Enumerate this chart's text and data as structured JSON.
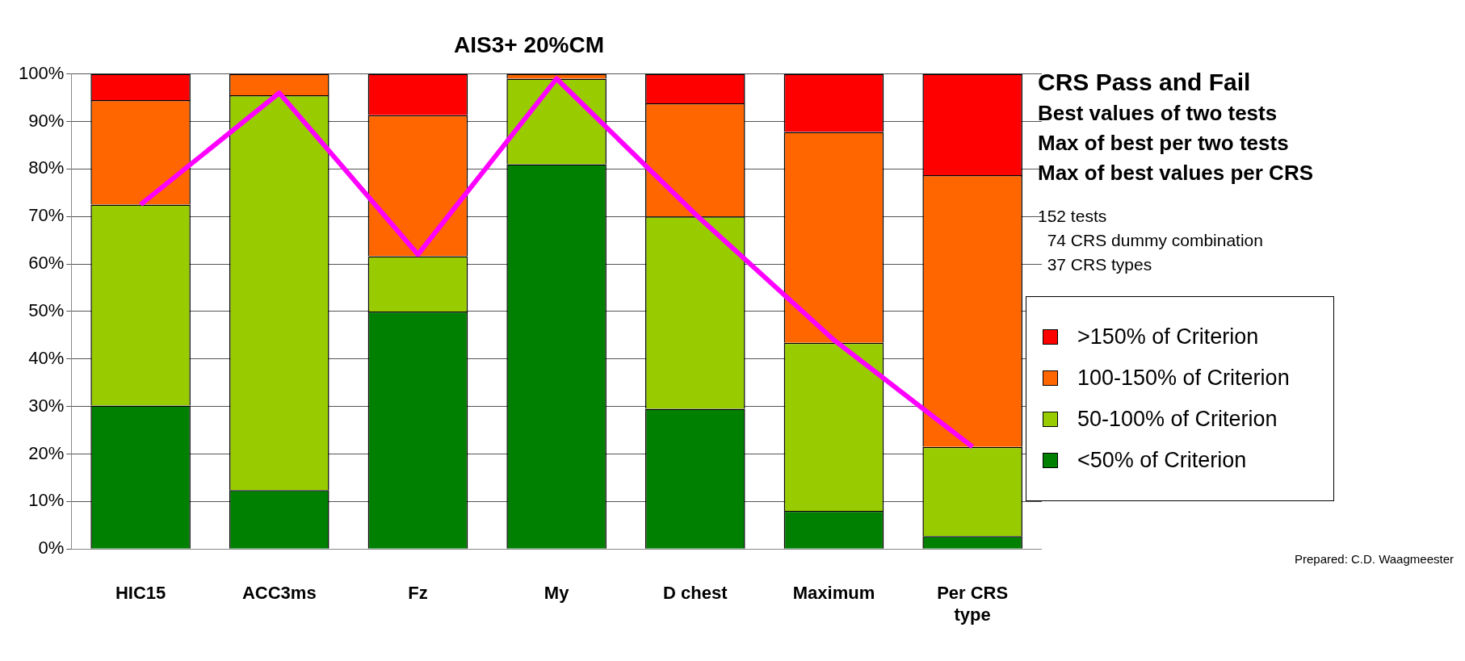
{
  "chart_data": {
    "type": "bar",
    "title": "AIS3+ 20%CM",
    "stacked": true,
    "categories": [
      "HIC15",
      "ACC3ms",
      "Fz",
      "My",
      "D chest",
      "Maximum",
      "Per CRS type"
    ],
    "series": [
      {
        "name": "<50% of Criterion",
        "color": "#008000",
        "values": [
          30.2,
          12.4,
          50,
          81,
          29.5,
          8,
          2.7
        ]
      },
      {
        "name": "50-100% of Criterion",
        "color": "#99cc00",
        "values": [
          42.3,
          83.1,
          11.6,
          18,
          40.5,
          35.4,
          18.8
        ]
      },
      {
        "name": "100-150% of Criterion",
        "color": "#ff6600",
        "values": [
          22,
          4.5,
          29.7,
          1,
          23.8,
          44.4,
          57.2
        ]
      },
      {
        "name": ">150% of Criterion",
        "color": "#ff0000",
        "values": [
          5.5,
          0,
          8.7,
          0,
          6.2,
          12.2,
          21.3
        ]
      },
      {
        "type": "line",
        "color": "#ff00ff",
        "values": [
          72.5,
          96,
          62,
          99,
          70.5,
          44,
          21.5
        ]
      }
    ],
    "ylim": [
      0,
      100
    ],
    "yticks": [
      {
        "value": 0,
        "label": "0%"
      },
      {
        "value": 10,
        "label": "10%"
      },
      {
        "value": 20,
        "label": "20%"
      },
      {
        "value": 30,
        "label": "30%"
      },
      {
        "value": 40,
        "label": "40%"
      },
      {
        "value": 50,
        "label": "50%"
      },
      {
        "value": 60,
        "label": "60%"
      },
      {
        "value": 70,
        "label": "70%"
      },
      {
        "value": 80,
        "label": "80%"
      },
      {
        "value": 90,
        "label": "90%"
      },
      {
        "value": 100,
        "label": "100%"
      }
    ],
    "grid": "y",
    "legend": "right",
    "marker": "none",
    "annotations": [
      "CRS Pass and Fail",
      "Best values of two tests",
      "Max of best per two tests",
      "Max of best values per CRS",
      "152 tests",
      "74 CRS dummy combination",
      "37 CRS types",
      "Prepared: C.D. Waagmeester"
    ]
  }
}
